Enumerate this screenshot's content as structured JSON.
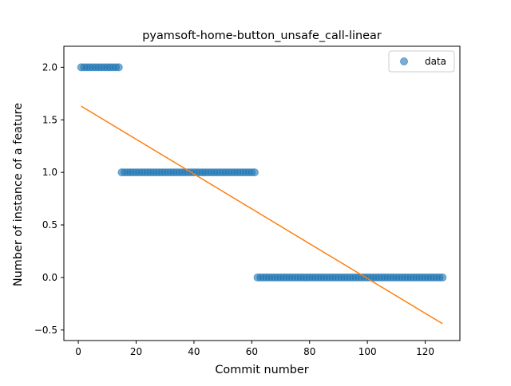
{
  "chart_data": {
    "type": "scatter",
    "title": "pyamsoft-home-button_unsafe_call-linear",
    "xlabel": "Commit number",
    "ylabel": "Number of instance of a feature",
    "xlim": [
      -5,
      132
    ],
    "ylim": [
      -0.6,
      2.2
    ],
    "xticks": [
      0,
      20,
      40,
      60,
      80,
      100,
      120
    ],
    "yticks": [
      -0.5,
      0.0,
      0.5,
      1.0,
      1.5,
      2.0
    ],
    "xtick_labels": [
      "0",
      "20",
      "40",
      "60",
      "80",
      "100",
      "120"
    ],
    "ytick_labels": [
      "−0.5",
      "0.0",
      "0.5",
      "1.0",
      "1.5",
      "2.0"
    ],
    "legend": {
      "position": "top-right",
      "entries": [
        "data"
      ]
    },
    "grid": false,
    "colors": {
      "data": "#1f77b4",
      "fit": "#ff7f0e"
    },
    "series": [
      {
        "name": "data",
        "kind": "scatter",
        "segments": [
          {
            "x_start": 1,
            "x_end": 14,
            "y": 2
          },
          {
            "x_start": 15,
            "x_end": 61,
            "y": 1
          },
          {
            "x_start": 62,
            "x_end": 126,
            "y": 0
          }
        ]
      },
      {
        "kind": "line",
        "x": [
          1,
          126
        ],
        "y": [
          1.63,
          -0.44
        ]
      }
    ]
  }
}
